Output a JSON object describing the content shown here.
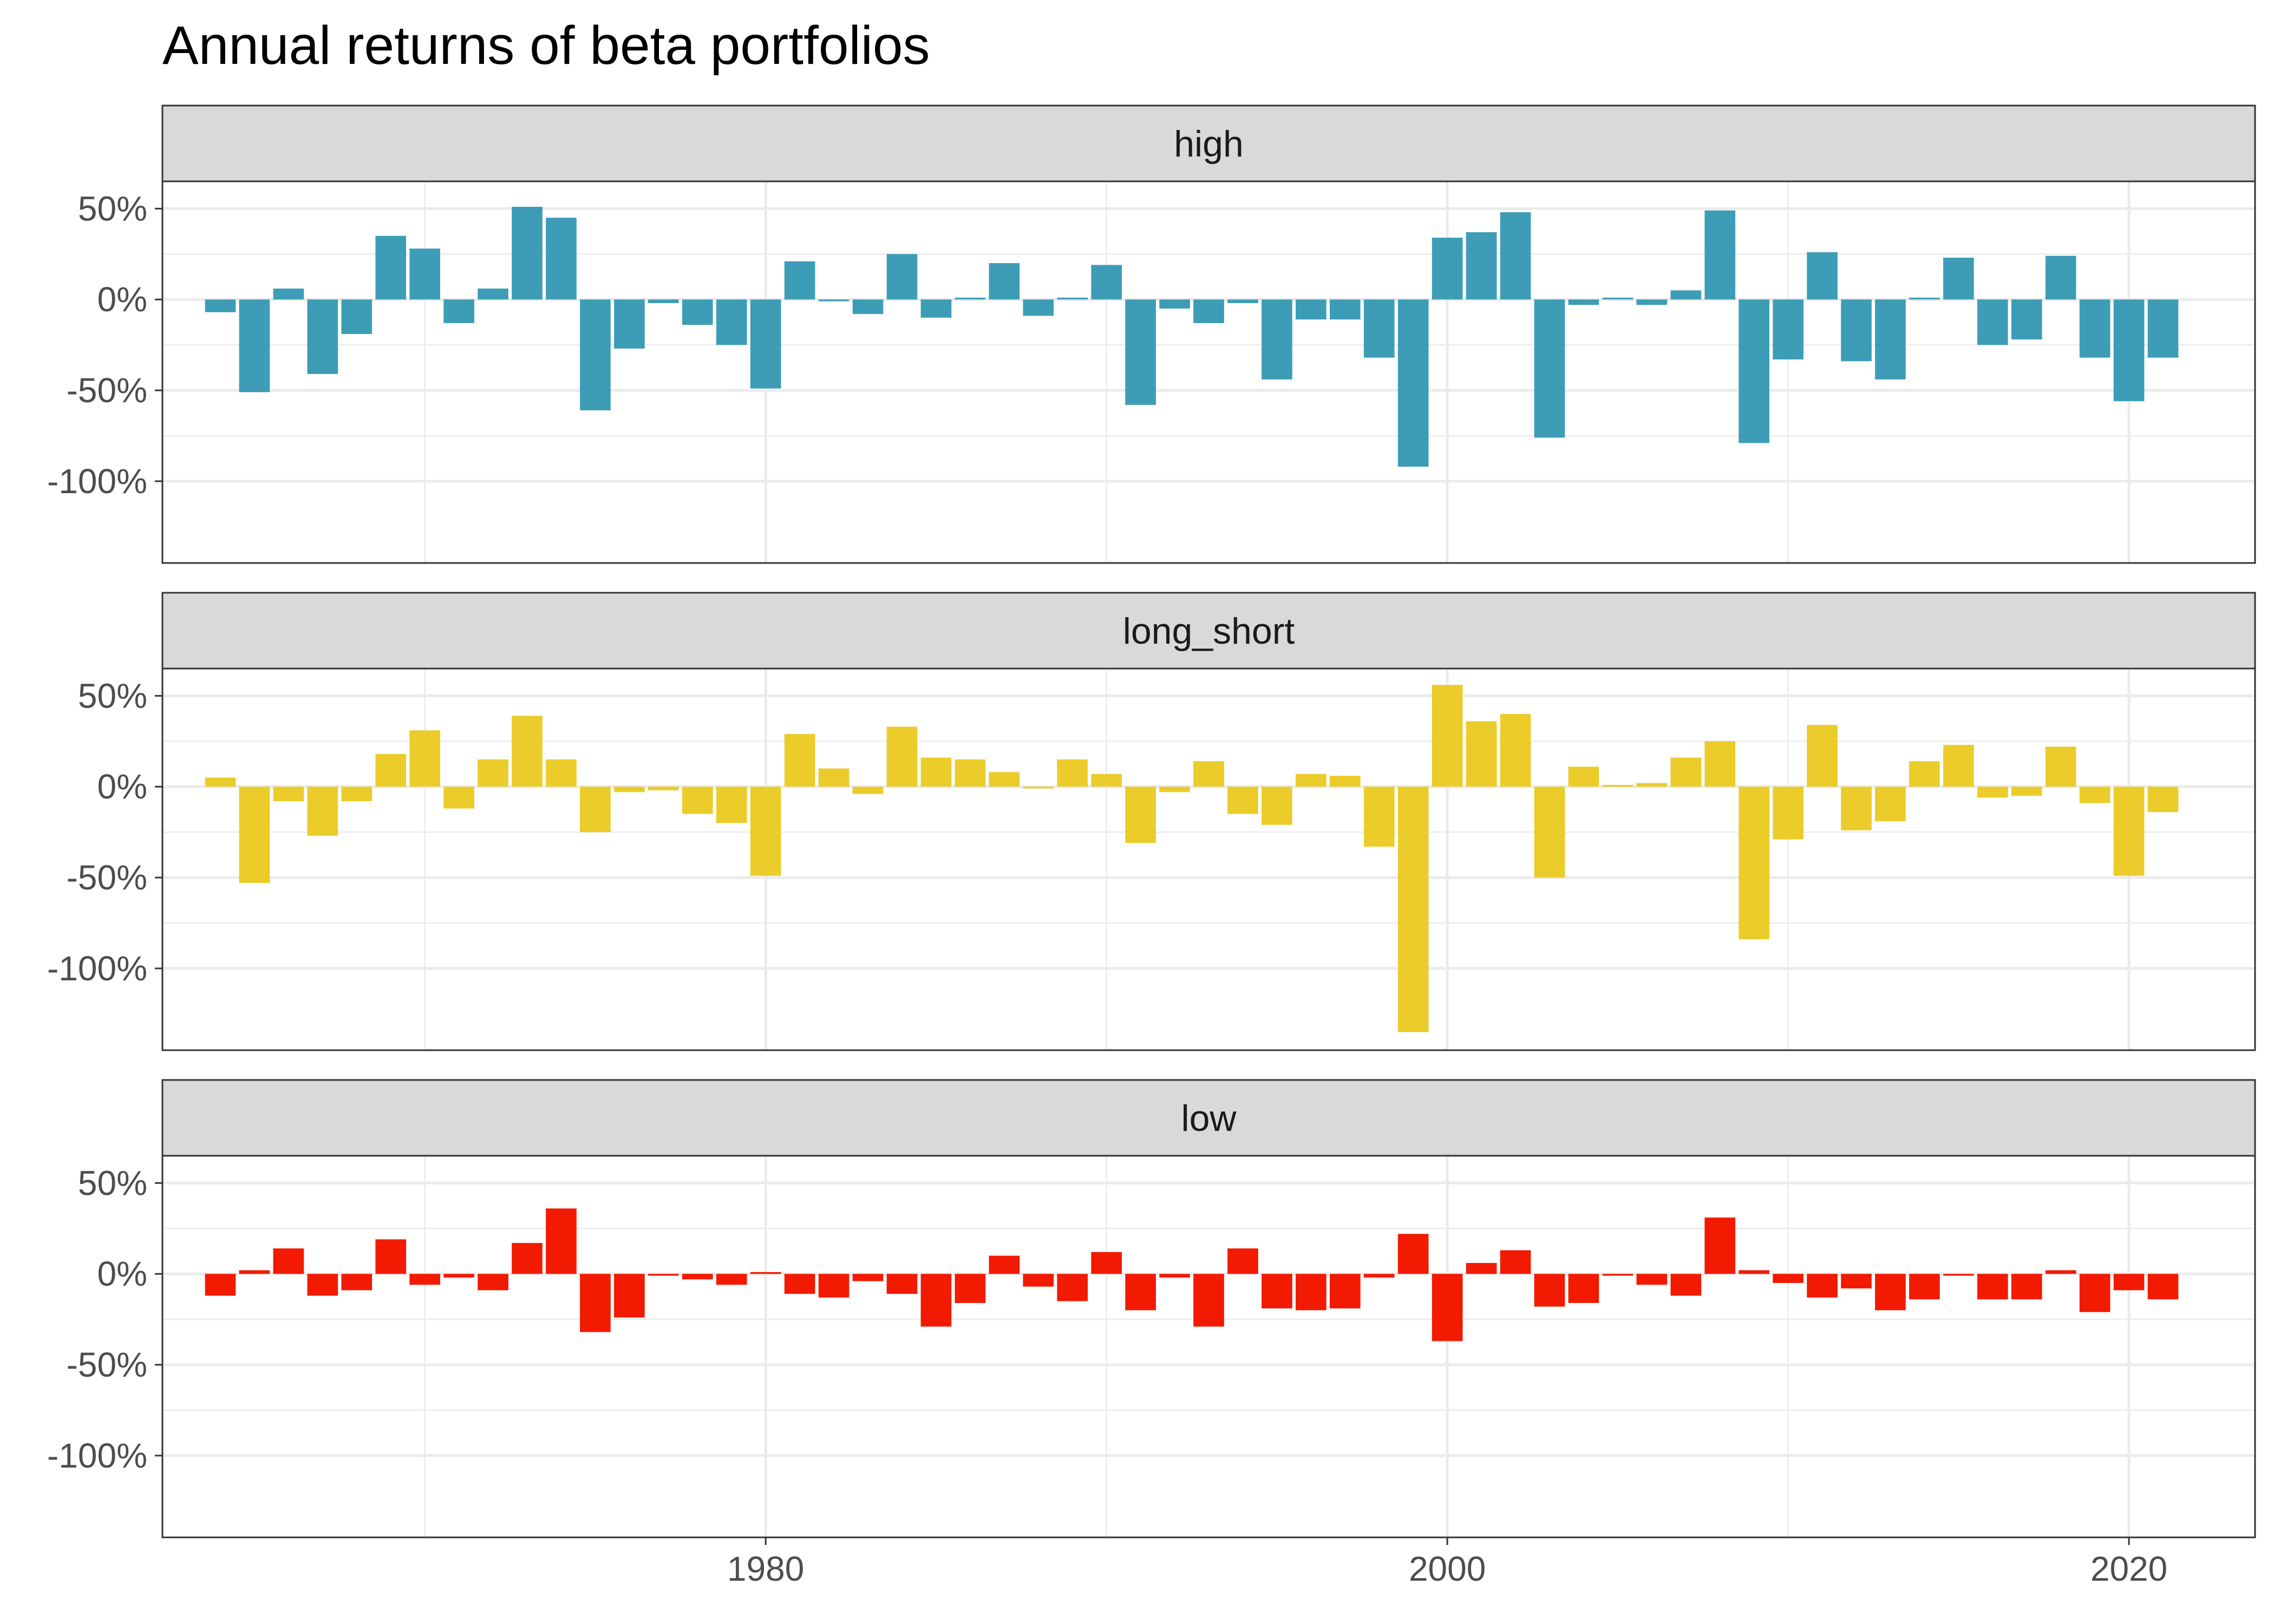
{
  "chart_data": {
    "type": "bar",
    "title": "Annual returns of beta portfolios",
    "xlabel": "",
    "ylabel": "",
    "facet_layout": "vertical",
    "y_tick_values": [
      50,
      0,
      -50,
      -100
    ],
    "y_tick_labels": [
      "50%",
      "0%",
      "-50%",
      "-100%"
    ],
    "x_tick_values": [
      1980,
      2000,
      2020
    ],
    "x_tick_labels": [
      "1980",
      "2000",
      "2020"
    ],
    "ylim": [
      -145,
      65
    ],
    "xlim": [
      1962.3,
      2023.7
    ],
    "grid": true,
    "legend": "none",
    "x": [
      1964,
      1965,
      1966,
      1967,
      1968,
      1969,
      1970,
      1971,
      1972,
      1973,
      1974,
      1975,
      1976,
      1977,
      1978,
      1979,
      1980,
      1981,
      1982,
      1983,
      1984,
      1985,
      1986,
      1987,
      1988,
      1989,
      1990,
      1991,
      1992,
      1993,
      1994,
      1995,
      1996,
      1997,
      1998,
      1999,
      2000,
      2001,
      2002,
      2003,
      2004,
      2005,
      2006,
      2007,
      2008,
      2009,
      2010,
      2011,
      2012,
      2013,
      2014,
      2015,
      2016,
      2017,
      2018,
      2019,
      2020,
      2021
    ],
    "series": [
      {
        "name": "high",
        "color": "#3d9db7",
        "values": [
          -7,
          -51,
          6,
          -41,
          -19,
          35,
          28,
          -13,
          6,
          51,
          45,
          -61,
          -27,
          -2,
          -14,
          -25,
          -49,
          21,
          -1,
          -8,
          25,
          -10,
          1,
          20,
          -9,
          1,
          19,
          -58,
          -5,
          -13,
          -2,
          -44,
          -11,
          -11,
          -32,
          -92,
          34,
          37,
          48,
          -76,
          -3,
          1,
          -3,
          5,
          49,
          -79,
          -33,
          26,
          -34,
          -44,
          1,
          23,
          -25,
          -22,
          24,
          -32,
          -56,
          -32
        ]
      },
      {
        "name": "long_short",
        "color": "#ebcc2a",
        "values": [
          5,
          -53,
          -8,
          -27,
          -8,
          18,
          31,
          -12,
          15,
          39,
          15,
          -25,
          -3,
          -2,
          -15,
          -20,
          -49,
          29,
          10,
          -4,
          33,
          16,
          15,
          8,
          -1,
          15,
          7,
          -31,
          -3,
          14,
          -15,
          -21,
          7,
          6,
          -33,
          -135,
          56,
          36,
          40,
          -50,
          11,
          1,
          2,
          16,
          25,
          -84,
          -29,
          34,
          -24,
          -19,
          14,
          23,
          -6,
          -5,
          22,
          -9,
          -49,
          -14
        ]
      },
      {
        "name": "low",
        "color": "#f21a00",
        "values": [
          -12,
          2,
          14,
          -12,
          -9,
          19,
          -6,
          -2,
          -9,
          17,
          36,
          -32,
          -24,
          -1,
          -3,
          -6,
          1,
          -11,
          -13,
          -4,
          -11,
          -29,
          -16,
          10,
          -7,
          -15,
          12,
          -20,
          -2,
          -29,
          14,
          -19,
          -20,
          -19,
          -2,
          22,
          -37,
          6,
          13,
          -18,
          -16,
          -1,
          -6,
          -12,
          31,
          2,
          -5,
          -13,
          -8,
          -20,
          -14,
          -1,
          -14,
          -14,
          2,
          -21,
          -9,
          -14
        ]
      }
    ]
  }
}
